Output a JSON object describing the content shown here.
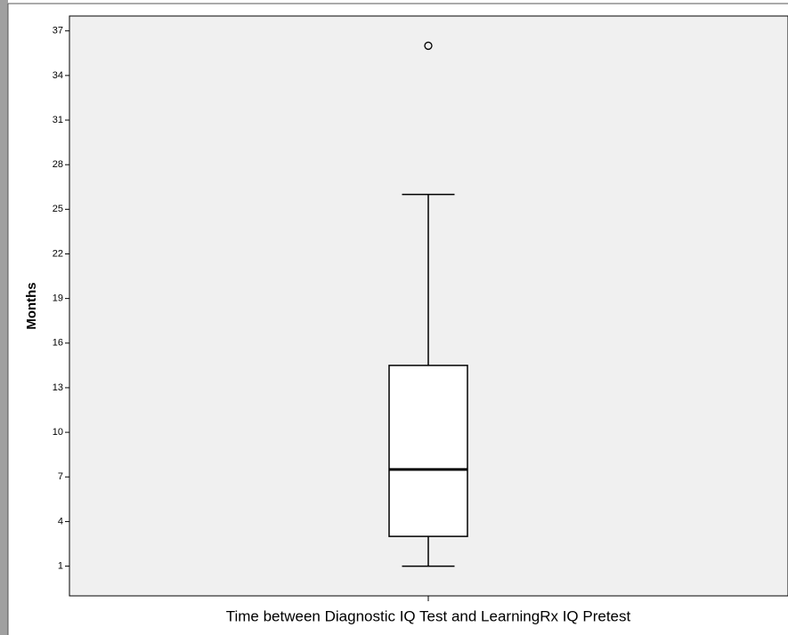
{
  "chart_data": {
    "type": "box",
    "ylabel": "Months",
    "categories": [
      "Time between Diagnostic IQ Test and LearningRx IQ Pretest"
    ],
    "boxes": [
      {
        "min": 1,
        "q1": 3,
        "median": 7.5,
        "q3": 14.5,
        "max": 26,
        "outliers": [
          36
        ]
      }
    ],
    "ylim": [
      -1,
      38
    ],
    "yticks": [
      1,
      4,
      7,
      10,
      13,
      16,
      19,
      22,
      25,
      28,
      31,
      34,
      37
    ]
  }
}
